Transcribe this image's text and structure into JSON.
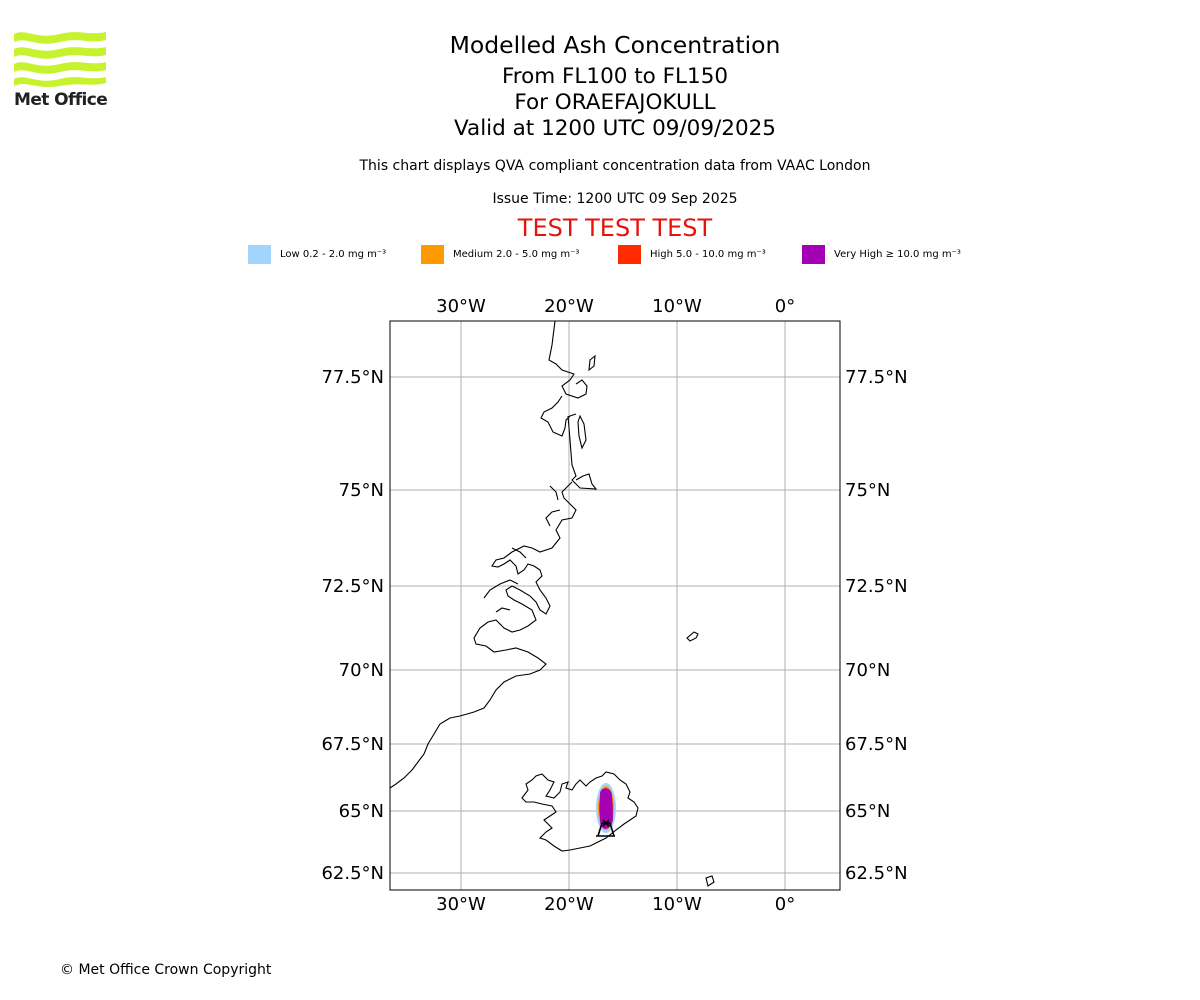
{
  "logo": {
    "brand": "Met Office"
  },
  "header": {
    "title": "Modelled Ash Concentration",
    "levels": "From FL100 to FL150",
    "volcano": "For ORAEFAJOKULL",
    "valid": "Valid at 1200 UTC 09/09/2025",
    "note": "This chart displays QVA compliant concentration data from VAAC London",
    "issue_time": "Issue Time: 1200 UTC 09 Sep 2025",
    "test_banner": "TEST TEST TEST"
  },
  "legend": [
    {
      "label": "Low 0.2 - 2.0 mg m⁻³",
      "color": "#a3d4fb"
    },
    {
      "label": "Medium 2.0 - 5.0 mg m⁻³",
      "color": "#ff9900"
    },
    {
      "label": "High 5.0 - 10.0 mg m⁻³",
      "color": "#ff2a00"
    },
    {
      "label": "Very High  ≥  10.0 mg m⁻³",
      "color": "#a500b5"
    }
  ],
  "map": {
    "lon_ticks": [
      "30°W",
      "20°W",
      "10°W",
      "0°"
    ],
    "lat_ticks": [
      "77.5°N",
      "75°N",
      "72.5°N",
      "70°N",
      "67.5°N",
      "65°N",
      "62.5°N"
    ],
    "volcano_marker": "volcano-icon"
  },
  "footer": {
    "copyright": "© Met Office Crown Copyright"
  }
}
